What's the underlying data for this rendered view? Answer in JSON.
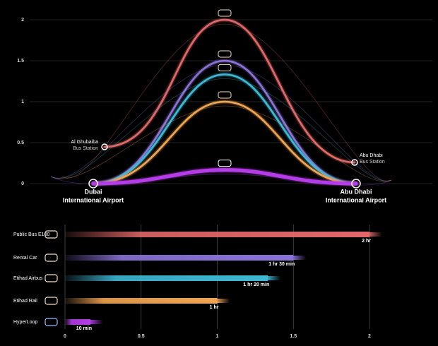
{
  "chart_data": {
    "type": "bar",
    "orientation": "horizontal",
    "categories": [
      "Public Bus E100",
      "Rental Car",
      "Etihad Airbus",
      "Etihad Rail",
      "HyperLoop"
    ],
    "values": [
      2,
      1.5,
      1.333,
      1,
      0.167
    ],
    "value_labels": [
      "2 hr",
      "1 hr 30 min",
      "1 hr 20 min",
      "1 hr",
      "10 min"
    ],
    "colors": [
      "#e06868",
      "#8c72d8",
      "#3fb8d4",
      "#f0a452",
      "#b43ce8"
    ],
    "xlim": [
      0,
      2.35
    ],
    "xticks": [
      0,
      0.5,
      1,
      1.5,
      2
    ],
    "grid": true,
    "route": {
      "ylim": [
        0,
        2.1
      ],
      "yticks": [
        0,
        0.5,
        1,
        1.5,
        2
      ],
      "grid": true,
      "start": {
        "name": "Dubai",
        "sublabel": "International Airport"
      },
      "end": {
        "name": "Abu Dhabi",
        "sublabel": "International Airport"
      },
      "bus_start": {
        "name": "Al Ghubaiba",
        "sublabel": "Bus Station"
      },
      "bus_end": {
        "name": "Abu Dhabi",
        "sublabel": "Bus Station"
      }
    }
  }
}
